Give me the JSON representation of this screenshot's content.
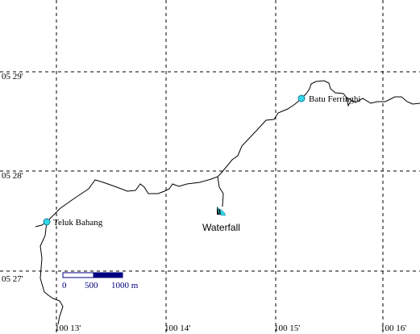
{
  "map": {
    "latitude_labels": [
      "05 29'",
      "05 28'",
      "05 27'"
    ],
    "longitude_labels": [
      "100 13'",
      "100 14'",
      "100 15'",
      "100 16'"
    ],
    "places": [
      {
        "name": "Teluk Bahang"
      },
      {
        "name": "Batu Ferringhi"
      }
    ],
    "poi": {
      "name": "Waterfall",
      "icon": "waterfall-icon"
    },
    "scale_bar": {
      "labels": [
        "0",
        "500",
        "1000 m"
      ]
    },
    "colors": {
      "town_marker": "#33d6e8",
      "scale_bar": "#000080",
      "grid": "#000000",
      "road": "#000000"
    }
  }
}
